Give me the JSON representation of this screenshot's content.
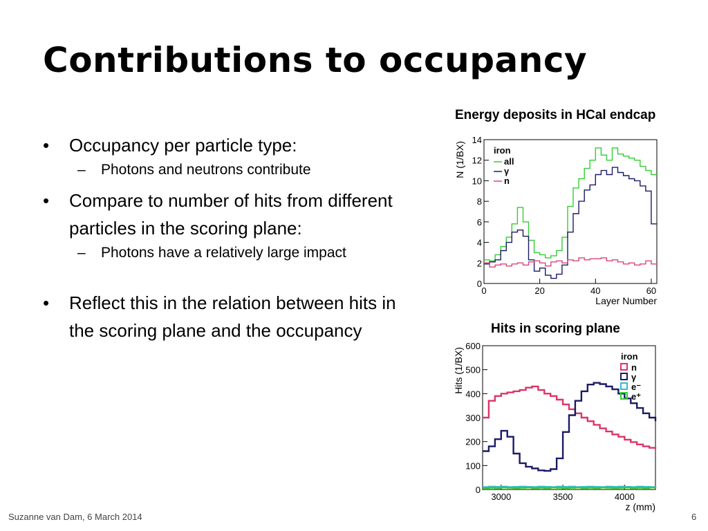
{
  "slide": {
    "title": "Contributions to occupancy",
    "footer_left": "Suzanne van Dam, 6 March 2014",
    "page_number": "6"
  },
  "bullets": [
    {
      "text": "Occupancy per particle type:",
      "subs": [
        "Photons and neutrons contribute"
      ]
    },
    {
      "text": "Compare to number of hits from different particles in the scoring plane:",
      "subs": [
        "Photons have a relatively large impact"
      ]
    },
    {
      "text": "Reflect this in the relation between hits in the scoring plane and the occupancy",
      "subs": []
    }
  ],
  "chart_data": [
    {
      "type": "line",
      "step": true,
      "title": "Energy deposits in HCal endcap",
      "xlabel": "Layer Number",
      "ylabel": "N (1/BX)",
      "xlim": [
        0,
        62
      ],
      "ylim": [
        0,
        14
      ],
      "xticks": [
        0,
        20,
        40,
        60
      ],
      "yticks": [
        0,
        2,
        4,
        6,
        8,
        10,
        12,
        14
      ],
      "legend_header": "iron",
      "legend_position": "top-left",
      "x": [
        0,
        2,
        4,
        6,
        8,
        10,
        12,
        14,
        16,
        18,
        20,
        22,
        24,
        26,
        28,
        30,
        32,
        34,
        36,
        38,
        40,
        42,
        44,
        46,
        48,
        50,
        52,
        54,
        56,
        58,
        60
      ],
      "series": [
        {
          "name": "all",
          "color": "#33cc33",
          "values": [
            2.3,
            2.2,
            2.8,
            3.6,
            4.5,
            5.8,
            7.4,
            6.0,
            4.2,
            3.0,
            2.8,
            2.5,
            2.7,
            3.2,
            4.5,
            7.5,
            9.3,
            10.2,
            11.2,
            12.0,
            13.2,
            12.5,
            12.0,
            13.2,
            12.6,
            12.4,
            12.2,
            12.0,
            11.4,
            11.0,
            10.6
          ]
        },
        {
          "name": "γ",
          "color": "#1a1a66",
          "values": [
            1.9,
            2.1,
            2.3,
            3.2,
            4.0,
            5.0,
            5.2,
            4.6,
            2.3,
            1.2,
            1.5,
            0.8,
            0.5,
            0.9,
            1.8,
            5.0,
            6.8,
            8.0,
            9.1,
            9.6,
            10.6,
            11.0,
            10.6,
            11.3,
            10.8,
            10.5,
            10.2,
            10.0,
            9.5,
            9.0,
            5.8
          ]
        },
        {
          "name": "n",
          "color": "#dd4477",
          "values": [
            2.0,
            1.6,
            1.8,
            1.9,
            1.7,
            1.9,
            2.0,
            1.8,
            2.1,
            2.2,
            2.0,
            1.7,
            2.1,
            2.2,
            2.0,
            2.3,
            2.2,
            2.5,
            2.3,
            2.4,
            2.4,
            2.5,
            2.2,
            2.3,
            2.1,
            1.9,
            2.0,
            1.8,
            1.9,
            2.2,
            1.9
          ]
        }
      ]
    },
    {
      "type": "line",
      "step": true,
      "title": "Hits in scoring plane",
      "xlabel": "z (mm)",
      "ylabel": "Hits (1/BX)",
      "xlim": [
        2850,
        4250
      ],
      "ylim": [
        0,
        600
      ],
      "xticks": [
        3000,
        3500,
        4000
      ],
      "yticks": [
        0,
        100,
        200,
        300,
        400,
        500,
        600
      ],
      "legend_header": "iron",
      "legend_position": "top-right",
      "x": [
        2850,
        2900,
        2950,
        3000,
        3050,
        3100,
        3150,
        3200,
        3250,
        3300,
        3350,
        3400,
        3450,
        3500,
        3550,
        3600,
        3650,
        3700,
        3750,
        3800,
        3850,
        3900,
        3950,
        4000,
        4050,
        4100,
        4150,
        4200,
        4250
      ],
      "series": [
        {
          "name": "n",
          "color": "#dd3366",
          "values": [
            300,
            370,
            390,
            400,
            405,
            410,
            415,
            425,
            430,
            415,
            400,
            390,
            375,
            355,
            335,
            318,
            300,
            285,
            270,
            255,
            242,
            230,
            220,
            208,
            198,
            188,
            180,
            174,
            170
          ]
        },
        {
          "name": "γ",
          "color": "#1a1a66",
          "values": [
            160,
            180,
            210,
            245,
            220,
            150,
            110,
            95,
            88,
            80,
            78,
            85,
            130,
            240,
            310,
            370,
            410,
            438,
            445,
            440,
            430,
            418,
            400,
            380,
            360,
            340,
            318,
            300,
            285
          ]
        },
        {
          "name": "e⁻",
          "color": "#33bbcc",
          "values": [
            10,
            12,
            11,
            12,
            10,
            11,
            12,
            11,
            10,
            12,
            11,
            10,
            12,
            11,
            12,
            10,
            11,
            12,
            11,
            10,
            12,
            11,
            12,
            11,
            10,
            12,
            11,
            10,
            12
          ]
        },
        {
          "name": "e⁺",
          "color": "#33cc33",
          "values": [
            6,
            7,
            6,
            8,
            7,
            6,
            7,
            8,
            6,
            7,
            6,
            8,
            7,
            6,
            7,
            8,
            6,
            7,
            6,
            8,
            7,
            6,
            7,
            8,
            6,
            7,
            6,
            8,
            7
          ]
        }
      ]
    }
  ]
}
